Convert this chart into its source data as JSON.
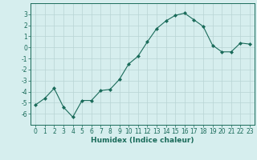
{
  "x": [
    0,
    1,
    2,
    3,
    4,
    5,
    6,
    7,
    8,
    9,
    10,
    11,
    12,
    13,
    14,
    15,
    16,
    17,
    18,
    19,
    20,
    21,
    22,
    23
  ],
  "y": [
    -5.2,
    -4.6,
    -3.7,
    -5.4,
    -6.3,
    -4.8,
    -4.8,
    -3.9,
    -3.8,
    -2.9,
    -1.5,
    -0.8,
    0.5,
    1.7,
    2.4,
    2.9,
    3.1,
    2.5,
    1.9,
    0.2,
    -0.4,
    -0.4,
    0.4,
    0.3
  ],
  "line_color": "#1a6b5a",
  "marker": "D",
  "marker_size": 2.0,
  "bg_color": "#d6eeee",
  "grid_color": "#b8d4d4",
  "xlabel": "Humidex (Indice chaleur)",
  "xlabel_fontsize": 6.5,
  "xlim": [
    -0.5,
    23.5
  ],
  "ylim": [
    -7,
    4
  ],
  "yticks": [
    -6,
    -5,
    -4,
    -3,
    -2,
    -1,
    0,
    1,
    2,
    3
  ],
  "xticks": [
    0,
    1,
    2,
    3,
    4,
    5,
    6,
    7,
    8,
    9,
    10,
    11,
    12,
    13,
    14,
    15,
    16,
    17,
    18,
    19,
    20,
    21,
    22,
    23
  ],
  "tick_fontsize": 5.5,
  "tick_color": "#1a6b5a",
  "spine_color": "#1a6b5a",
  "line_width": 0.8
}
